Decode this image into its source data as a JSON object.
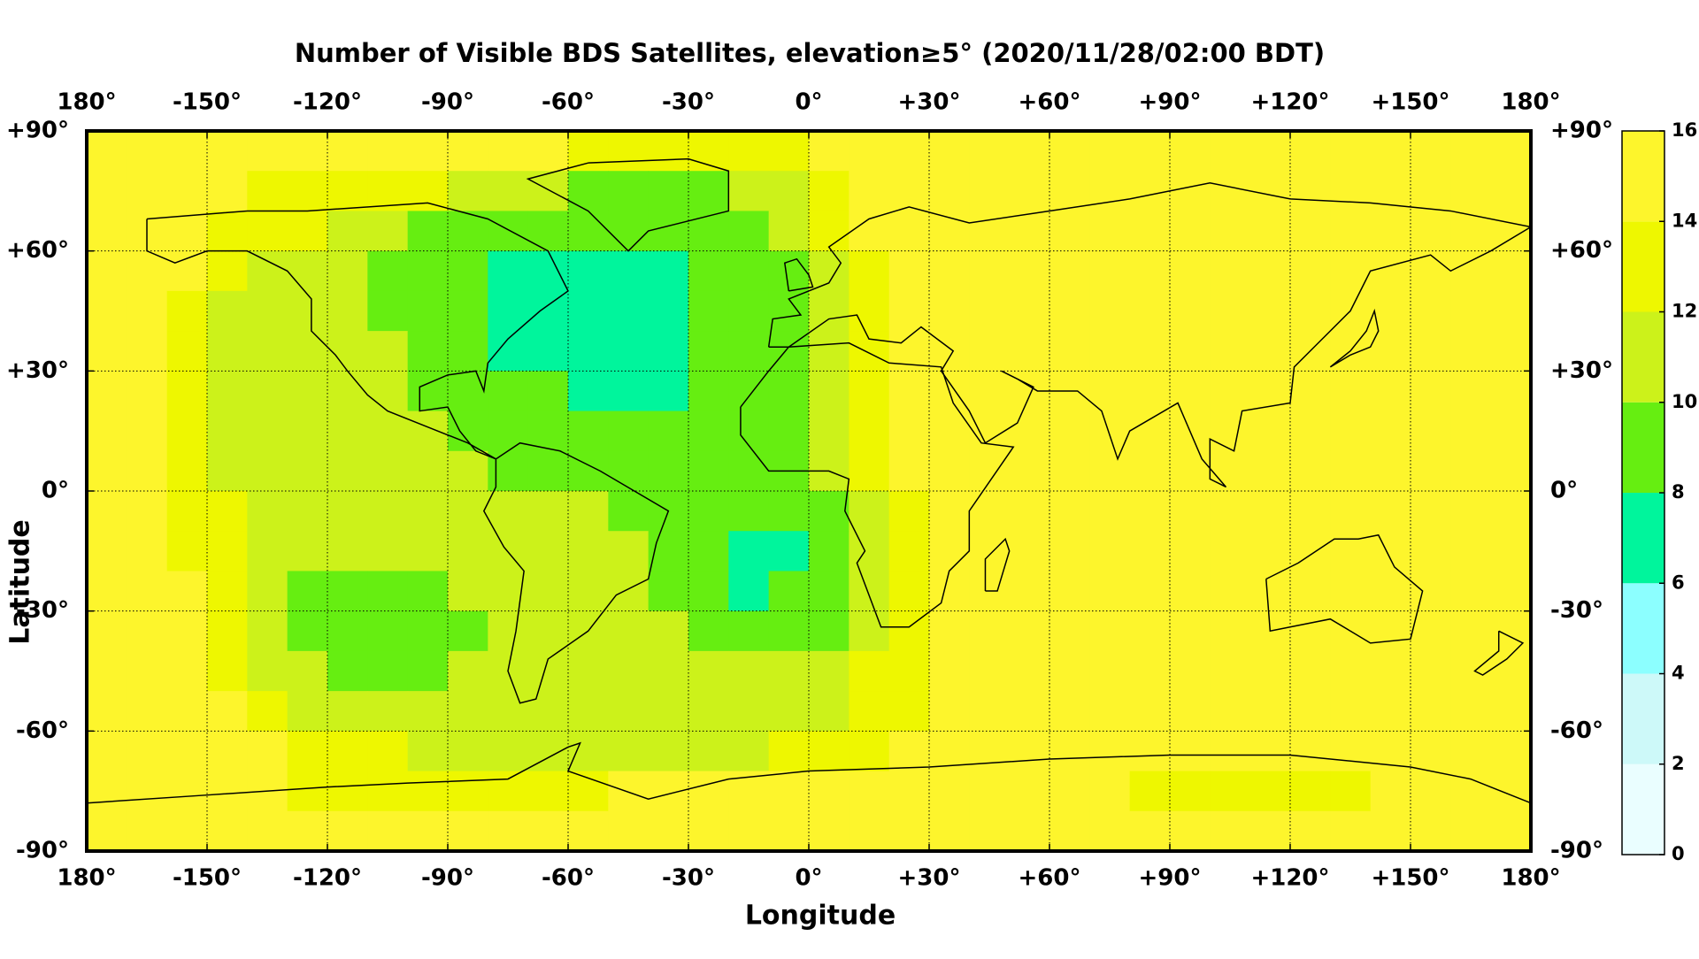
{
  "chart_data": {
    "type": "heatmap",
    "title": "Number of Visible BDS Satellites, elevation≥5° (2020/11/28/02:00 BDT)",
    "xlabel": "Longitude",
    "ylabel": "Latitude",
    "xlim": [
      -180,
      180
    ],
    "ylim": [
      -90,
      90
    ],
    "xticks": [
      {
        "value": -180,
        "label": "180°"
      },
      {
        "value": -150,
        "label": "-150°"
      },
      {
        "value": -120,
        "label": "-120°"
      },
      {
        "value": -90,
        "label": "-90°"
      },
      {
        "value": -60,
        "label": "-60°"
      },
      {
        "value": -30,
        "label": "-30°"
      },
      {
        "value": 0,
        "label": "0°"
      },
      {
        "value": 30,
        "label": "+30°"
      },
      {
        "value": 60,
        "label": "+60°"
      },
      {
        "value": 90,
        "label": "+90°"
      },
      {
        "value": 120,
        "label": "+120°"
      },
      {
        "value": 150,
        "label": "+150°"
      },
      {
        "value": 180,
        "label": "180°"
      }
    ],
    "yticks": [
      {
        "value": 90,
        "label": "+90°"
      },
      {
        "value": 60,
        "label": "+60°"
      },
      {
        "value": 30,
        "label": "+30°"
      },
      {
        "value": 0,
        "label": "0°"
      },
      {
        "value": -30,
        "label": "-30°"
      },
      {
        "value": -60,
        "label": "-60°"
      },
      {
        "value": -90,
        "label": "-90°"
      }
    ],
    "grid": true,
    "x": [
      -175,
      -165,
      -155,
      -145,
      -135,
      -125,
      -115,
      -105,
      -95,
      -85,
      -75,
      -65,
      -55,
      -45,
      -35,
      -25,
      -15,
      -5,
      5,
      15,
      25,
      35,
      45,
      55,
      65,
      75,
      85,
      95,
      105,
      115,
      125,
      135,
      145,
      155,
      165,
      175
    ],
    "y": [
      85,
      75,
      65,
      55,
      45,
      35,
      25,
      15,
      5,
      -5,
      -15,
      -25,
      -35,
      -45,
      -55,
      -65,
      -75,
      -85
    ],
    "values": [
      [
        15,
        15,
        15,
        15,
        15,
        15,
        15,
        15,
        15,
        15,
        15,
        15,
        13,
        13,
        13,
        13,
        13,
        13,
        15,
        15,
        15,
        15,
        15,
        15,
        15,
        15,
        15,
        15,
        15,
        15,
        15,
        15,
        15,
        15,
        15,
        15
      ],
      [
        15,
        15,
        15,
        15,
        13,
        13,
        13,
        13,
        13,
        11,
        11,
        11,
        9,
        9,
        9,
        9,
        11,
        11,
        13,
        15,
        15,
        15,
        15,
        15,
        15,
        15,
        15,
        15,
        15,
        15,
        15,
        15,
        15,
        15,
        15,
        15
      ],
      [
        15,
        15,
        15,
        13,
        13,
        13,
        11,
        11,
        9,
        9,
        9,
        9,
        9,
        9,
        9,
        9,
        9,
        11,
        13,
        15,
        15,
        15,
        15,
        15,
        15,
        15,
        15,
        15,
        15,
        15,
        15,
        15,
        15,
        15,
        15,
        15
      ],
      [
        15,
        15,
        15,
        13,
        11,
        11,
        11,
        9,
        9,
        9,
        7,
        7,
        7,
        7,
        7,
        9,
        9,
        9,
        11,
        13,
        15,
        15,
        15,
        15,
        15,
        15,
        15,
        15,
        15,
        15,
        15,
        15,
        15,
        15,
        15,
        15
      ],
      [
        15,
        15,
        13,
        11,
        11,
        11,
        11,
        9,
        9,
        9,
        7,
        7,
        7,
        7,
        7,
        9,
        9,
        9,
        11,
        13,
        15,
        15,
        15,
        15,
        15,
        15,
        15,
        15,
        15,
        15,
        15,
        15,
        15,
        15,
        15,
        15
      ],
      [
        15,
        15,
        13,
        11,
        11,
        11,
        11,
        11,
        9,
        9,
        7,
        7,
        7,
        7,
        7,
        9,
        9,
        9,
        11,
        13,
        15,
        15,
        15,
        15,
        15,
        15,
        15,
        15,
        15,
        15,
        15,
        15,
        15,
        15,
        15,
        15
      ],
      [
        15,
        15,
        13,
        11,
        11,
        11,
        11,
        11,
        9,
        9,
        9,
        9,
        7,
        7,
        7,
        9,
        9,
        9,
        11,
        13,
        15,
        15,
        15,
        15,
        15,
        15,
        15,
        15,
        15,
        15,
        15,
        15,
        15,
        15,
        15,
        15
      ],
      [
        15,
        15,
        13,
        11,
        11,
        11,
        11,
        11,
        11,
        9,
        9,
        9,
        9,
        9,
        9,
        9,
        9,
        9,
        11,
        13,
        15,
        15,
        15,
        15,
        15,
        15,
        15,
        15,
        15,
        15,
        15,
        15,
        15,
        15,
        15,
        15
      ],
      [
        15,
        15,
        13,
        11,
        11,
        11,
        11,
        11,
        11,
        11,
        9,
        9,
        9,
        9,
        9,
        9,
        9,
        9,
        11,
        13,
        15,
        15,
        15,
        15,
        15,
        15,
        15,
        15,
        15,
        15,
        15,
        15,
        15,
        15,
        15,
        15
      ],
      [
        15,
        15,
        13,
        13,
        11,
        11,
        11,
        11,
        11,
        11,
        11,
        11,
        11,
        9,
        9,
        9,
        9,
        9,
        9,
        11,
        13,
        15,
        15,
        15,
        15,
        15,
        15,
        15,
        15,
        15,
        15,
        15,
        15,
        15,
        15,
        15
      ],
      [
        15,
        15,
        13,
        13,
        11,
        11,
        11,
        11,
        11,
        11,
        11,
        11,
        11,
        11,
        9,
        9,
        7,
        7,
        9,
        11,
        13,
        15,
        15,
        15,
        15,
        15,
        15,
        15,
        15,
        15,
        15,
        15,
        15,
        15,
        15,
        15
      ],
      [
        15,
        15,
        15,
        13,
        11,
        9,
        9,
        9,
        9,
        11,
        11,
        11,
        11,
        11,
        9,
        9,
        7,
        9,
        9,
        11,
        13,
        15,
        15,
        15,
        15,
        15,
        15,
        15,
        15,
        15,
        15,
        15,
        15,
        15,
        15,
        15
      ],
      [
        15,
        15,
        15,
        13,
        11,
        9,
        9,
        9,
        9,
        9,
        11,
        11,
        11,
        11,
        11,
        9,
        9,
        9,
        9,
        11,
        13,
        15,
        15,
        15,
        15,
        15,
        15,
        15,
        15,
        15,
        15,
        15,
        15,
        15,
        15,
        15
      ],
      [
        15,
        15,
        15,
        13,
        11,
        11,
        9,
        9,
        9,
        11,
        11,
        11,
        11,
        11,
        11,
        11,
        11,
        11,
        11,
        13,
        13,
        15,
        15,
        15,
        15,
        15,
        15,
        15,
        15,
        15,
        15,
        15,
        15,
        15,
        15,
        15
      ],
      [
        15,
        15,
        15,
        15,
        13,
        11,
        11,
        11,
        11,
        11,
        11,
        11,
        11,
        11,
        11,
        11,
        11,
        11,
        11,
        13,
        13,
        15,
        15,
        15,
        15,
        15,
        15,
        15,
        15,
        15,
        15,
        15,
        15,
        15,
        15,
        15
      ],
      [
        15,
        15,
        15,
        15,
        15,
        13,
        13,
        13,
        11,
        11,
        11,
        11,
        11,
        11,
        11,
        11,
        11,
        13,
        13,
        13,
        15,
        15,
        15,
        15,
        15,
        15,
        15,
        15,
        15,
        15,
        15,
        15,
        15,
        15,
        15,
        15
      ],
      [
        15,
        15,
        15,
        15,
        15,
        13,
        13,
        13,
        13,
        13,
        13,
        13,
        13,
        15,
        15,
        15,
        15,
        15,
        15,
        15,
        15,
        15,
        15,
        15,
        15,
        15,
        13,
        13,
        13,
        13,
        13,
        13,
        15,
        15,
        15,
        15
      ],
      [
        15,
        15,
        15,
        15,
        15,
        15,
        15,
        15,
        15,
        15,
        15,
        15,
        15,
        15,
        15,
        15,
        15,
        15,
        15,
        15,
        15,
        15,
        15,
        15,
        15,
        15,
        15,
        15,
        15,
        15,
        15,
        15,
        15,
        15,
        15,
        15
      ]
    ],
    "colorbar": {
      "ticks": [
        0,
        2,
        4,
        6,
        8,
        10,
        12,
        14,
        16
      ],
      "colors": [
        "#eafeff",
        "#cdf9f9",
        "#8cffff",
        "#00f59c",
        "#66ee11",
        "#ccf21a",
        "#eef700",
        "#fdf52c"
      ]
    }
  }
}
